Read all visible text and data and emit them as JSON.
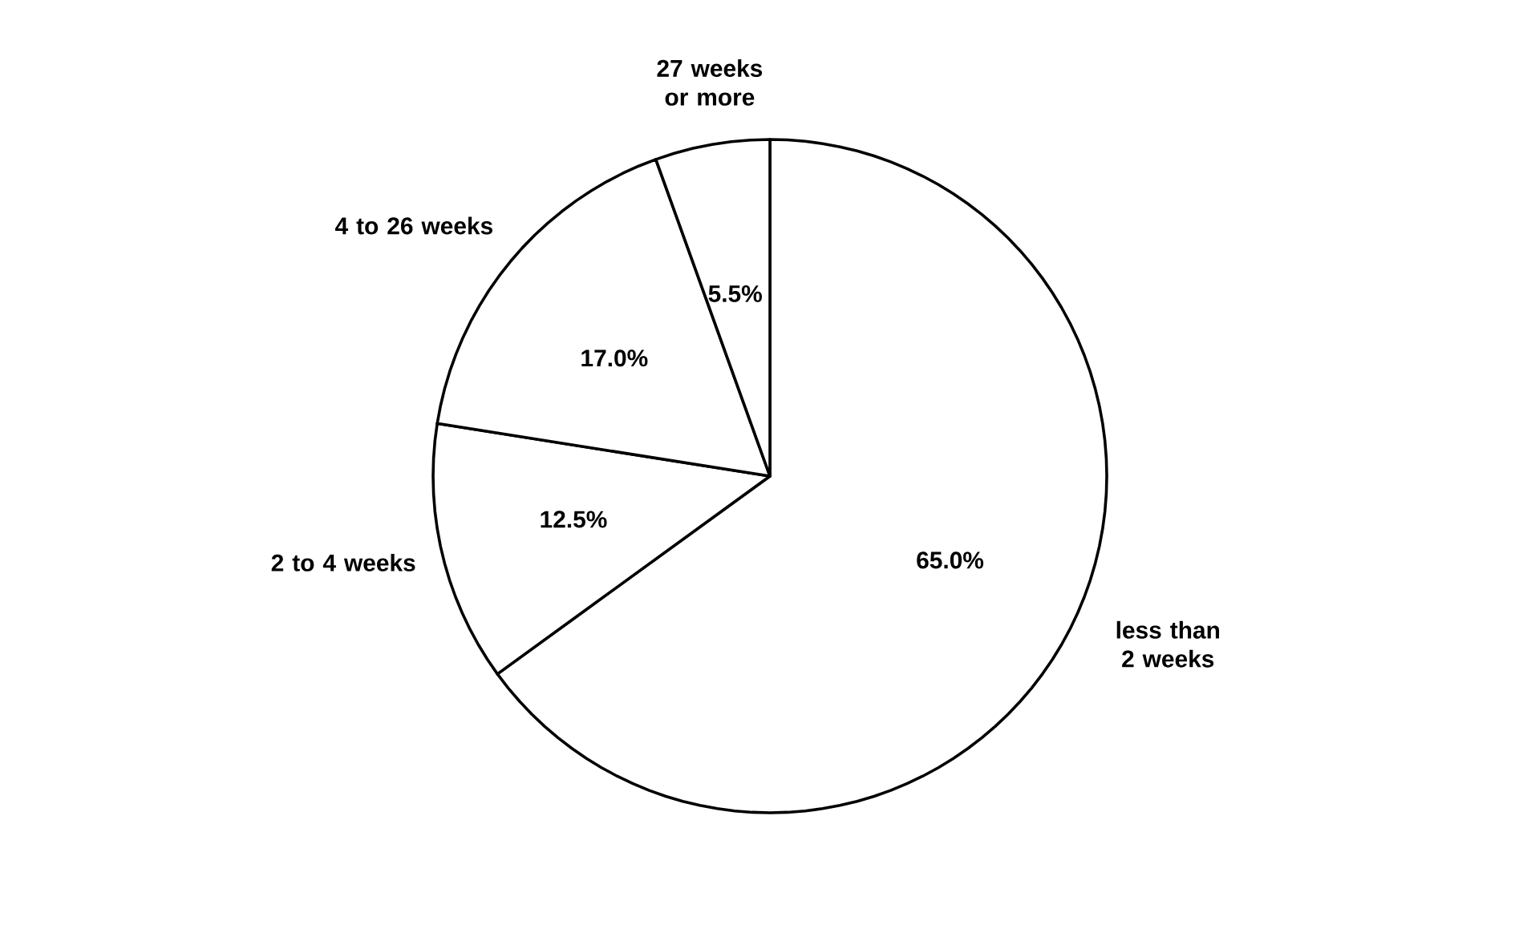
{
  "chart_data": {
    "type": "pie",
    "categories": [
      "less than 2 weeks",
      "2 to 4 weeks",
      "4 to 26 weeks",
      "27 weeks or more"
    ],
    "values": [
      65.0,
      12.5,
      17.0,
      5.5
    ],
    "value_labels": [
      "65.0%",
      "12.5%",
      "17.0%",
      "5.5%"
    ],
    "colors": [
      "#ffffff",
      "#ffffff",
      "#ffffff",
      "#ffffff"
    ],
    "legend": false
  }
}
